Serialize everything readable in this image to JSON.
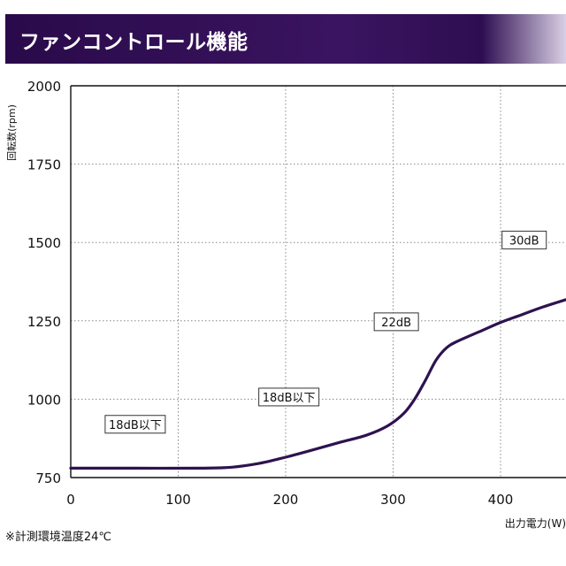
{
  "header": {
    "title": "ファンコントロール機能"
  },
  "note": "※計測環境温度24℃",
  "colors": {
    "header": "#2e0e52",
    "curve": "#2e1250",
    "grid": "#888888"
  },
  "chart_data": {
    "type": "line",
    "title": "",
    "ylabel": "回転数(rpm)",
    "xlabel": "出力電力(W)",
    "x_ticks": [
      0,
      100,
      200,
      300,
      400
    ],
    "y_ticks": [
      750,
      1000,
      1250,
      1500,
      1750,
      2000
    ],
    "xlim": [
      0,
      465
    ],
    "ylim": [
      750,
      2000
    ],
    "grid": true,
    "series": [
      {
        "x": [
          0,
          60,
          120,
          150,
          175,
          200,
          225,
          250,
          275,
          295,
          310,
          320,
          330,
          340,
          350,
          360,
          380,
          400,
          420,
          440,
          465
        ],
        "y": [
          780,
          780,
          780,
          783,
          795,
          815,
          838,
          862,
          885,
          915,
          955,
          1000,
          1060,
          1125,
          1165,
          1185,
          1215,
          1245,
          1270,
          1295,
          1322
        ]
      }
    ],
    "annotations": [
      {
        "text": "18dB以下",
        "x": 60,
        "y": 920
      },
      {
        "text": "18dB以下",
        "x": 203,
        "y": 1007
      },
      {
        "text": "22dB",
        "x": 303,
        "y": 1247
      },
      {
        "text": "30dB",
        "x": 422,
        "y": 1508
      }
    ]
  }
}
